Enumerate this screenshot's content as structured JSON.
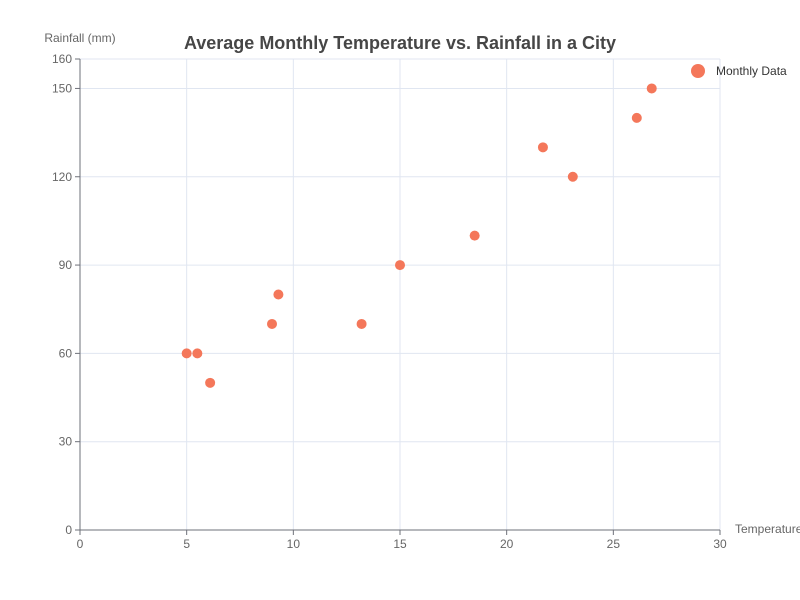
{
  "chart_data": {
    "type": "scatter",
    "title": "Average Monthly Temperature vs. Rainfall in a City",
    "xlabel": "Temperature",
    "ylabel": "Rainfall (mm)",
    "xlim": [
      0,
      30
    ],
    "ylim": [
      0,
      160
    ],
    "xticks": [
      0,
      5,
      10,
      15,
      20,
      25,
      30
    ],
    "yticks": [
      0,
      30,
      60,
      90,
      120,
      150,
      160
    ],
    "grid": true,
    "legend_position": "top-right",
    "series": [
      {
        "name": "Monthly Data",
        "color": "#f4775a",
        "points": [
          {
            "x": 5.0,
            "y": 60
          },
          {
            "x": 5.5,
            "y": 60
          },
          {
            "x": 6.1,
            "y": 50
          },
          {
            "x": 9.0,
            "y": 70
          },
          {
            "x": 9.3,
            "y": 80
          },
          {
            "x": 13.2,
            "y": 70
          },
          {
            "x": 15.0,
            "y": 90
          },
          {
            "x": 18.5,
            "y": 100
          },
          {
            "x": 21.7,
            "y": 130
          },
          {
            "x": 23.1,
            "y": 120
          },
          {
            "x": 26.1,
            "y": 140
          },
          {
            "x": 26.8,
            "y": 150
          }
        ]
      }
    ]
  }
}
